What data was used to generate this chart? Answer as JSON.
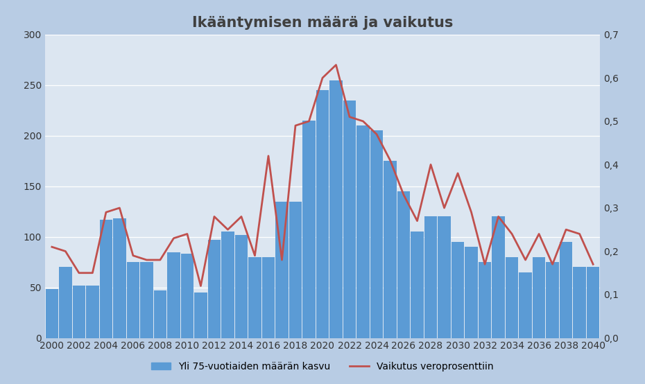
{
  "title": "Ikääntymisen määrä ja vaikutus",
  "years": [
    2000,
    2001,
    2002,
    2003,
    2004,
    2005,
    2006,
    2007,
    2008,
    2009,
    2010,
    2011,
    2012,
    2013,
    2014,
    2015,
    2016,
    2017,
    2018,
    2019,
    2020,
    2021,
    2022,
    2023,
    2024,
    2025,
    2026,
    2027,
    2028,
    2029,
    2030,
    2031,
    2032,
    2033,
    2034,
    2035,
    2036,
    2037,
    2038,
    2039,
    2040
  ],
  "bar_values": [
    48,
    70,
    52,
    52,
    117,
    118,
    75,
    75,
    47,
    85,
    83,
    45,
    97,
    105,
    102,
    80,
    80,
    135,
    135,
    215,
    245,
    255,
    235,
    210,
    205,
    175,
    145,
    105,
    120,
    120,
    95,
    90,
    75,
    120,
    80,
    65,
    80,
    75,
    95,
    70,
    70
  ],
  "line_values": [
    0.21,
    0.2,
    0.15,
    0.15,
    0.29,
    0.3,
    0.19,
    0.18,
    0.18,
    0.23,
    0.24,
    0.12,
    0.28,
    0.25,
    0.28,
    0.19,
    0.42,
    0.18,
    0.49,
    0.5,
    0.6,
    0.63,
    0.51,
    0.5,
    0.47,
    0.41,
    0.33,
    0.27,
    0.4,
    0.3,
    0.38,
    0.29,
    0.17,
    0.28,
    0.24,
    0.18,
    0.24,
    0.17,
    0.25,
    0.24,
    0.17
  ],
  "bar_color": "#5B9BD5",
  "line_color": "#C0504D",
  "fig_bg_color": "#B8CCE4",
  "plot_bg_color": "#DCE6F1",
  "left_ylim": [
    0,
    300
  ],
  "right_ylim": [
    0.0,
    0.7
  ],
  "left_yticks": [
    0,
    50,
    100,
    150,
    200,
    250,
    300
  ],
  "right_yticks": [
    0.0,
    0.1,
    0.2,
    0.3,
    0.4,
    0.5,
    0.6,
    0.7
  ],
  "legend_bar": "Yli 75-vuotiaiden määrän kasvu",
  "legend_line": "Vaikutus veroprosenttiin",
  "title_fontsize": 15,
  "tick_fontsize": 10,
  "legend_fontsize": 10
}
